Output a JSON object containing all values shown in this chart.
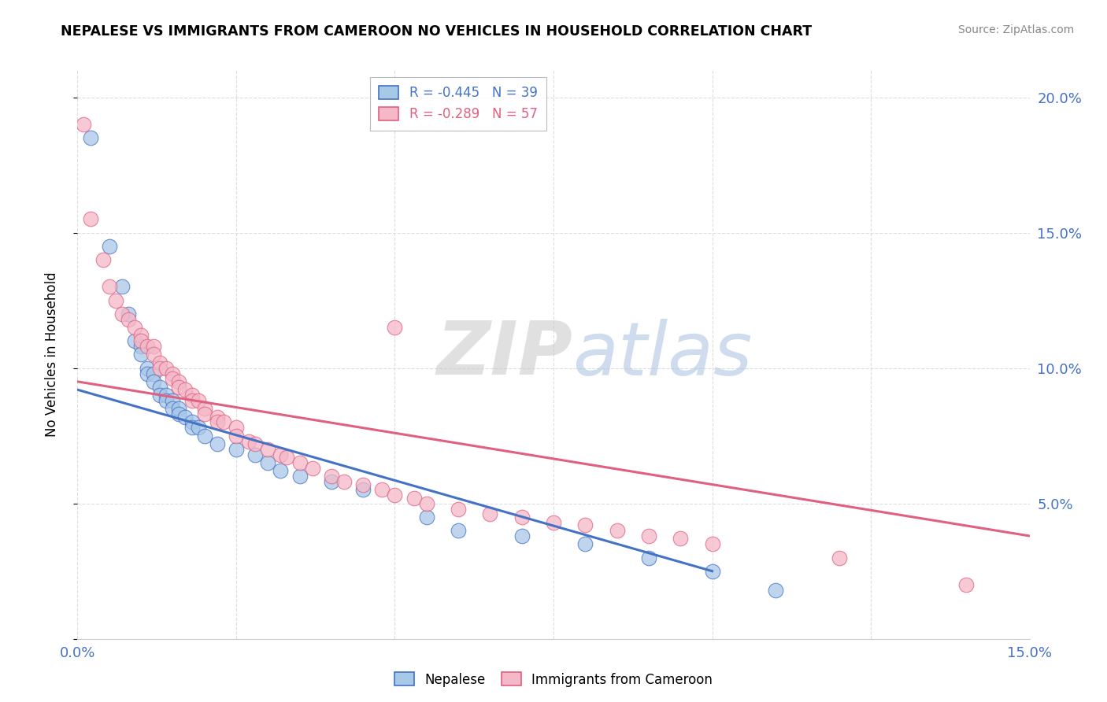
{
  "title": "NEPALESE VS IMMIGRANTS FROM CAMEROON NO VEHICLES IN HOUSEHOLD CORRELATION CHART",
  "source": "Source: ZipAtlas.com",
  "legend_blue_label": "Nepalese",
  "legend_pink_label": "Immigrants from Cameroon",
  "r_blue": -0.445,
  "n_blue": 39,
  "r_pink": -0.289,
  "n_pink": 57,
  "blue_color": "#a8c8e8",
  "pink_color": "#f4b8c8",
  "blue_line_color": "#4472c4",
  "pink_line_color": "#e06080",
  "blue_scatter": [
    [
      0.002,
      0.185
    ],
    [
      0.005,
      0.145
    ],
    [
      0.007,
      0.13
    ],
    [
      0.008,
      0.12
    ],
    [
      0.009,
      0.11
    ],
    [
      0.01,
      0.108
    ],
    [
      0.01,
      0.105
    ],
    [
      0.011,
      0.1
    ],
    [
      0.011,
      0.098
    ],
    [
      0.012,
      0.098
    ],
    [
      0.012,
      0.095
    ],
    [
      0.013,
      0.093
    ],
    [
      0.013,
      0.09
    ],
    [
      0.014,
      0.09
    ],
    [
      0.014,
      0.088
    ],
    [
      0.015,
      0.088
    ],
    [
      0.015,
      0.085
    ],
    [
      0.016,
      0.085
    ],
    [
      0.016,
      0.083
    ],
    [
      0.017,
      0.082
    ],
    [
      0.018,
      0.08
    ],
    [
      0.018,
      0.078
    ],
    [
      0.019,
      0.078
    ],
    [
      0.02,
      0.075
    ],
    [
      0.022,
      0.072
    ],
    [
      0.025,
      0.07
    ],
    [
      0.028,
      0.068
    ],
    [
      0.03,
      0.065
    ],
    [
      0.032,
      0.062
    ],
    [
      0.035,
      0.06
    ],
    [
      0.04,
      0.058
    ],
    [
      0.045,
      0.055
    ],
    [
      0.055,
      0.045
    ],
    [
      0.06,
      0.04
    ],
    [
      0.07,
      0.038
    ],
    [
      0.08,
      0.035
    ],
    [
      0.09,
      0.03
    ],
    [
      0.1,
      0.025
    ],
    [
      0.11,
      0.018
    ]
  ],
  "pink_scatter": [
    [
      0.001,
      0.19
    ],
    [
      0.002,
      0.155
    ],
    [
      0.004,
      0.14
    ],
    [
      0.005,
      0.13
    ],
    [
      0.006,
      0.125
    ],
    [
      0.007,
      0.12
    ],
    [
      0.008,
      0.118
    ],
    [
      0.009,
      0.115
    ],
    [
      0.01,
      0.112
    ],
    [
      0.01,
      0.11
    ],
    [
      0.011,
      0.108
    ],
    [
      0.012,
      0.108
    ],
    [
      0.012,
      0.105
    ],
    [
      0.013,
      0.102
    ],
    [
      0.013,
      0.1
    ],
    [
      0.014,
      0.1
    ],
    [
      0.015,
      0.098
    ],
    [
      0.015,
      0.096
    ],
    [
      0.016,
      0.095
    ],
    [
      0.016,
      0.093
    ],
    [
      0.017,
      0.092
    ],
    [
      0.018,
      0.09
    ],
    [
      0.018,
      0.088
    ],
    [
      0.019,
      0.088
    ],
    [
      0.02,
      0.085
    ],
    [
      0.02,
      0.083
    ],
    [
      0.022,
      0.082
    ],
    [
      0.022,
      0.08
    ],
    [
      0.023,
      0.08
    ],
    [
      0.025,
      0.078
    ],
    [
      0.025,
      0.075
    ],
    [
      0.027,
      0.073
    ],
    [
      0.028,
      0.072
    ],
    [
      0.03,
      0.07
    ],
    [
      0.032,
      0.068
    ],
    [
      0.033,
      0.067
    ],
    [
      0.035,
      0.065
    ],
    [
      0.037,
      0.063
    ],
    [
      0.04,
      0.06
    ],
    [
      0.042,
      0.058
    ],
    [
      0.045,
      0.057
    ],
    [
      0.048,
      0.055
    ],
    [
      0.05,
      0.053
    ],
    [
      0.053,
      0.052
    ],
    [
      0.055,
      0.05
    ],
    [
      0.06,
      0.048
    ],
    [
      0.065,
      0.046
    ],
    [
      0.05,
      0.115
    ],
    [
      0.07,
      0.045
    ],
    [
      0.075,
      0.043
    ],
    [
      0.08,
      0.042
    ],
    [
      0.085,
      0.04
    ],
    [
      0.09,
      0.038
    ],
    [
      0.095,
      0.037
    ],
    [
      0.1,
      0.035
    ],
    [
      0.12,
      0.03
    ],
    [
      0.14,
      0.02
    ]
  ],
  "blue_line": [
    [
      0.0,
      0.092
    ],
    [
      0.1,
      0.025
    ]
  ],
  "pink_line": [
    [
      0.0,
      0.095
    ],
    [
      0.15,
      0.038
    ]
  ],
  "xlim": [
    0.0,
    0.15
  ],
  "ylim": [
    0.0,
    0.21
  ],
  "yticks": [
    0.0,
    0.05,
    0.1,
    0.15,
    0.2
  ],
  "ytick_labels": [
    "",
    "5.0%",
    "10.0%",
    "15.0%",
    "20.0%"
  ],
  "watermark_zip": "ZIP",
  "watermark_atlas": "atlas",
  "background_color": "#ffffff",
  "grid_color": "#dddddd"
}
